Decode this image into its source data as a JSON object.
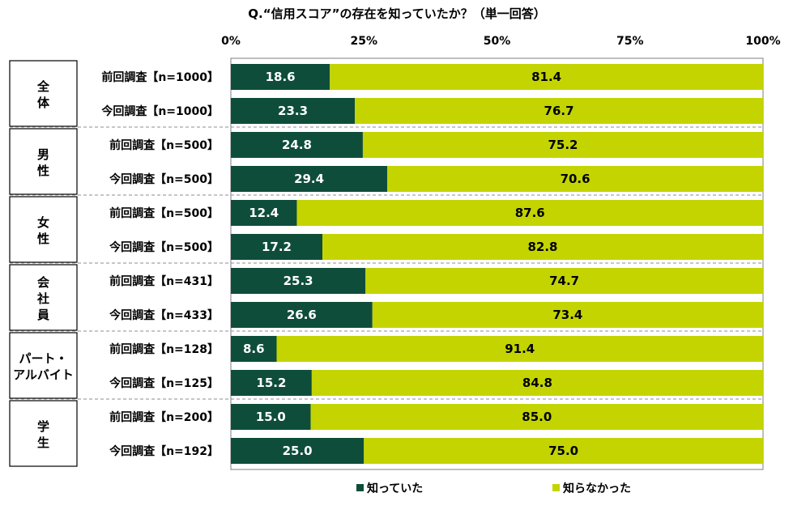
{
  "chart_data": {
    "type": "bar",
    "orientation": "horizontal",
    "stacked": true,
    "title": "Q.“信用スコア”の存在を知っていたか？（単一回答）",
    "x_ticks": [
      "0%",
      "25%",
      "50%",
      "75%",
      "100%"
    ],
    "xlim": [
      0,
      100
    ],
    "legend_position": "bottom",
    "groups": [
      {
        "label": [
          "全",
          "体"
        ],
        "rows": [
          {
            "label": "前回調査【n=1000】",
            "known": 18.6,
            "unknown": 81.4,
            "known_label": "18.6",
            "unknown_label": "81.4"
          },
          {
            "label": "今回調査【n=1000】",
            "known": 23.3,
            "unknown": 76.7,
            "known_label": "23.3",
            "unknown_label": "76.7"
          }
        ]
      },
      {
        "label": [
          "男",
          "性"
        ],
        "rows": [
          {
            "label": "前回調査【n=500】",
            "known": 24.8,
            "unknown": 75.2,
            "known_label": "24.8",
            "unknown_label": "75.2"
          },
          {
            "label": "今回調査【n=500】",
            "known": 29.4,
            "unknown": 70.6,
            "known_label": "29.4",
            "unknown_label": "70.6"
          }
        ]
      },
      {
        "label": [
          "女",
          "性"
        ],
        "rows": [
          {
            "label": "前回調査【n=500】",
            "known": 12.4,
            "unknown": 87.6,
            "known_label": "12.4",
            "unknown_label": "87.6"
          },
          {
            "label": "今回調査【n=500】",
            "known": 17.2,
            "unknown": 82.8,
            "known_label": "17.2",
            "unknown_label": "82.8"
          }
        ]
      },
      {
        "label": [
          "会",
          "社",
          "員"
        ],
        "rows": [
          {
            "label": "前回調査【n=431】",
            "known": 25.3,
            "unknown": 74.7,
            "known_label": "25.3",
            "unknown_label": "74.7"
          },
          {
            "label": "今回調査【n=433】",
            "known": 26.6,
            "unknown": 73.4,
            "known_label": "26.6",
            "unknown_label": "73.4"
          }
        ]
      },
      {
        "label": [
          "パート・",
          "アルバイト"
        ],
        "rows": [
          {
            "label": "前回調査【n=128】",
            "known": 8.6,
            "unknown": 91.4,
            "known_label": "8.6",
            "unknown_label": "91.4"
          },
          {
            "label": "今回調査【n=125】",
            "known": 15.2,
            "unknown": 84.8,
            "known_label": "15.2",
            "unknown_label": "84.8"
          }
        ]
      },
      {
        "label": [
          "学",
          "生"
        ],
        "rows": [
          {
            "label": "前回調査【n=200】",
            "known": 15.0,
            "unknown": 85.0,
            "known_label": "15.0",
            "unknown_label": "85.0"
          },
          {
            "label": "今回調査【n=192】",
            "known": 25.0,
            "unknown": 75.0,
            "known_label": "25.0",
            "unknown_label": "75.0"
          }
        ]
      }
    ],
    "series": [
      {
        "name": "知っていた",
        "color": "#0f4d3b"
      },
      {
        "name": "知らなかった",
        "color": "#c3d400"
      }
    ]
  }
}
